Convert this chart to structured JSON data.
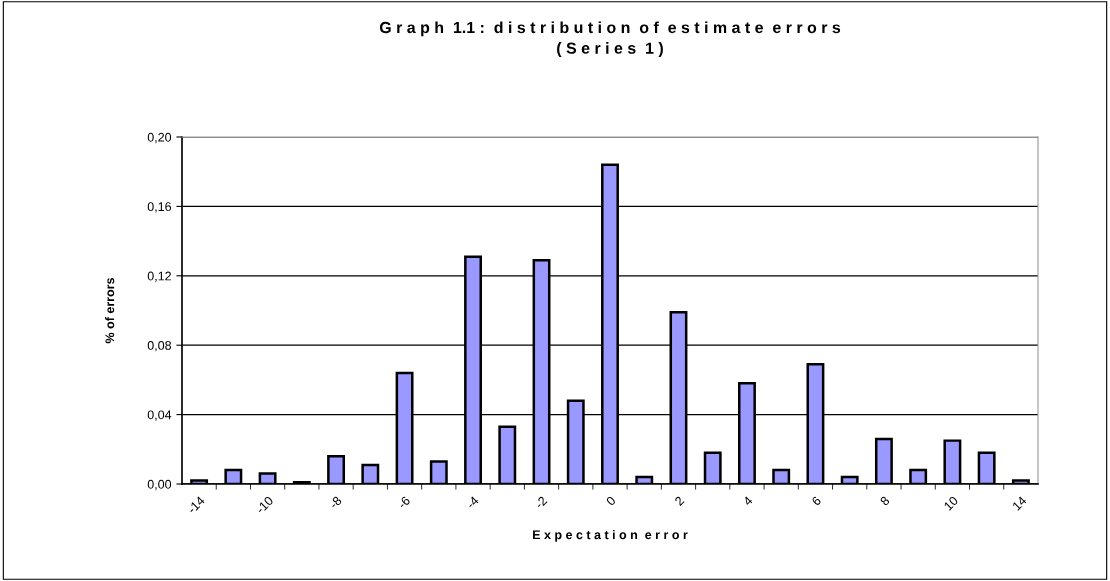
{
  "chart_data": {
    "type": "bar",
    "title": "G r a p h  1.1 :  d i s t r i b u t i o n  o f  e s t i m a t e  e r r o r s\n( S e r i e s  1 )",
    "xlabel": "E x p e c t a t i o n  e r r o r",
    "ylabel": "% of errors",
    "categories": [
      "-14",
      null,
      "-10",
      null,
      "-8",
      null,
      "-6",
      null,
      "-4",
      null,
      "-2",
      null,
      "0",
      null,
      "2",
      null,
      "4",
      null,
      "6",
      null,
      "8",
      null,
      "10",
      null,
      "14"
    ],
    "values": [
      0.002,
      0.008,
      0.006,
      0.001,
      0.016,
      0.011,
      0.064,
      0.013,
      0.131,
      0.033,
      0.129,
      0.048,
      0.184,
      0.004,
      0.099,
      0.018,
      0.058,
      0.008,
      0.069,
      0.004,
      0.026,
      0.008,
      0.025,
      0.018,
      0.002
    ],
    "color": "#9999ff",
    "ylim": [
      0,
      0.2
    ],
    "yticks": [
      {
        "value": 0,
        "label": "0,00"
      },
      {
        "value": 0.04,
        "label": "0,04"
      },
      {
        "value": 0.08,
        "label": "0,08"
      },
      {
        "value": 0.12,
        "label": "0,12"
      },
      {
        "value": 0.16,
        "label": "0,16"
      },
      {
        "value": 0.2,
        "label": "0,20"
      }
    ],
    "grid": "y",
    "legend": false
  }
}
